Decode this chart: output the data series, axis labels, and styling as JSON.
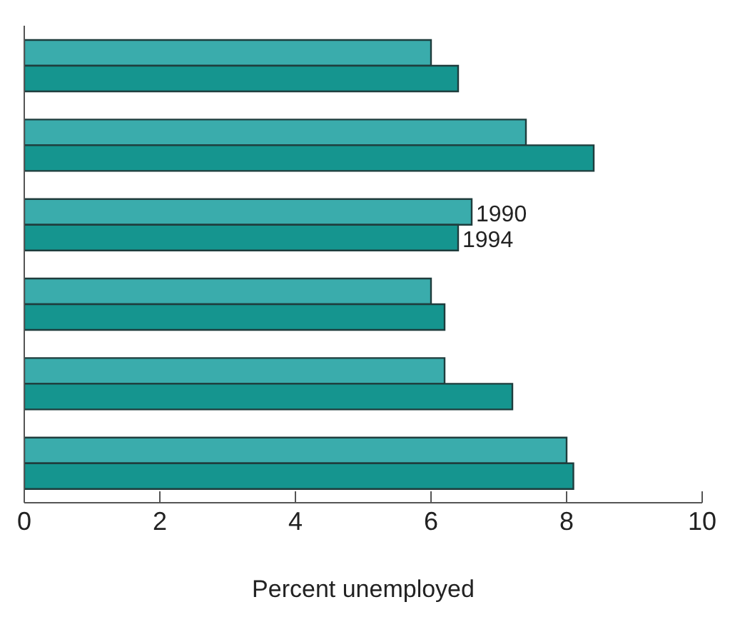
{
  "chart_data": {
    "type": "bar",
    "orientation": "horizontal",
    "categories": [
      null,
      null,
      null,
      null,
      null,
      null
    ],
    "series": [
      {
        "name": "1990",
        "color": "#3aacac",
        "values": [
          6.0,
          7.4,
          6.6,
          6.0,
          6.2,
          8.0
        ]
      },
      {
        "name": "1994",
        "color": "#15958f",
        "values": [
          6.4,
          8.4,
          6.4,
          6.2,
          7.2,
          8.1
        ]
      }
    ],
    "xlabel": "Percent unemployed",
    "xlim": [
      0,
      10
    ],
    "xticks": [
      0,
      2,
      4,
      6,
      8,
      10
    ],
    "grid": false,
    "legend": false
  }
}
